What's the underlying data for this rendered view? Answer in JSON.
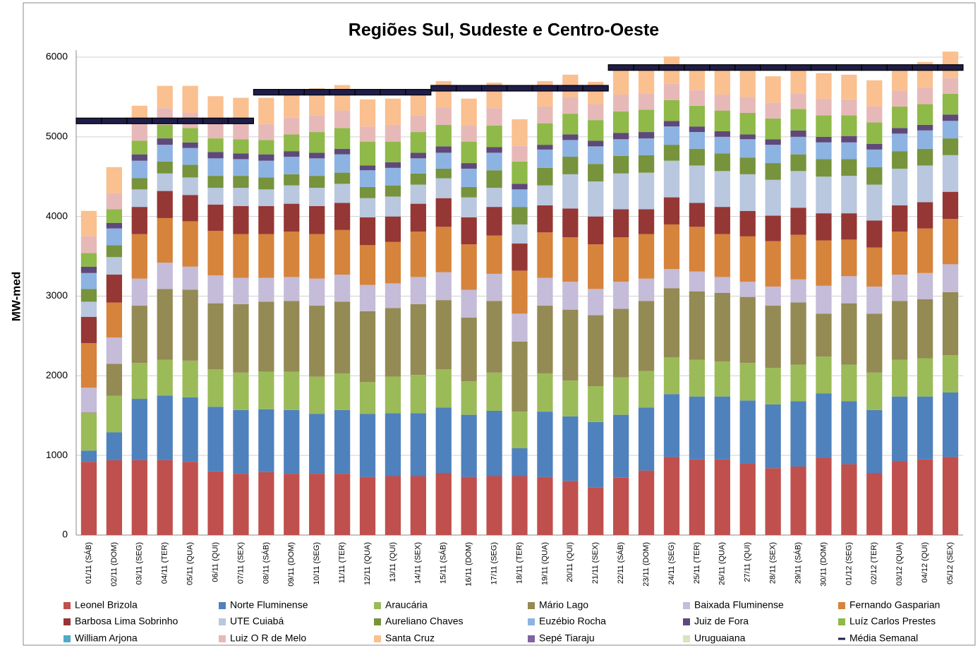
{
  "chart_data": {
    "type": "stacked-bar",
    "title": "Regiões Sul, Sudeste e Centro-Oeste",
    "y_label": "MW-med",
    "categories": [
      "01/11 (SÁB)",
      "02/11 (DOM)",
      "03/11 (SEG)",
      "04/11 (TER)",
      "05/11 (QUA)",
      "06/11 (QUI)",
      "07/11 (SEX)",
      "08/11 (SÁB)",
      "09/11 (DOM)",
      "10/11 (SEG)",
      "11/11 (TER)",
      "12/11 (QUA)",
      "13/11 (QUI)",
      "14/11 (SEX)",
      "15/11 (SÁB)",
      "16/11 (DOM)",
      "17/11 (SEG)",
      "18/11 (TER)",
      "19/11 (QUA)",
      "20/11 (QUI)",
      "21/11 (SEX)",
      "22/11 (SÁB)",
      "23/11 (DOM)",
      "24/11 (SEG)",
      "25/11 (TER)",
      "26/11 (QUA)",
      "27/11 (QUI)",
      "28/11 (SEX)",
      "29/11 (SÁB)",
      "30/11 (DOM)",
      "01/12 (SEG)",
      "02/12 (TER)",
      "03/12 (QUA)",
      "04/12 (QUI)",
      "05/12 (SEX)"
    ],
    "ylim": [
      0,
      6000
    ],
    "yticks": [
      0,
      1000,
      2000,
      3000,
      4000,
      5000,
      6000
    ],
    "series": [
      {
        "name": "Leonel Brizola",
        "color": "#c0504d",
        "values": [
          920,
          940,
          940,
          940,
          920,
          800,
          770,
          790,
          770,
          770,
          770,
          730,
          740,
          740,
          780,
          730,
          740,
          740,
          730,
          680,
          600,
          720,
          810,
          980,
          950,
          950,
          900,
          840,
          860,
          970,
          890,
          780,
          930,
          950,
          980
        ]
      },
      {
        "name": "Norte Fluminense",
        "color": "#4f81bd",
        "values": [
          140,
          350,
          770,
          810,
          810,
          810,
          800,
          790,
          800,
          750,
          800,
          790,
          790,
          790,
          820,
          780,
          820,
          350,
          820,
          810,
          820,
          790,
          790,
          790,
          790,
          790,
          790,
          800,
          820,
          810,
          790,
          790,
          810,
          790,
          810
        ]
      },
      {
        "name": "Araucária",
        "color": "#9bbb59",
        "values": [
          470,
          460,
          450,
          450,
          460,
          470,
          470,
          470,
          480,
          470,
          460,
          400,
          460,
          480,
          480,
          420,
          480,
          460,
          480,
          450,
          450,
          470,
          460,
          460,
          460,
          440,
          470,
          460,
          460,
          460,
          460,
          470,
          460,
          480,
          470
        ]
      },
      {
        "name": "Mário Lago",
        "color": "#948a54",
        "values": [
          10,
          400,
          720,
          890,
          890,
          830,
          860,
          880,
          890,
          890,
          900,
          890,
          860,
          890,
          870,
          800,
          900,
          880,
          850,
          890,
          890,
          860,
          880,
          870,
          860,
          860,
          830,
          780,
          780,
          540,
          770,
          740,
          740,
          740,
          790
        ]
      },
      {
        "name": "Baixada Fluminense",
        "color": "#c4bcd8",
        "values": [
          310,
          330,
          340,
          330,
          290,
          350,
          330,
          300,
          300,
          340,
          340,
          330,
          310,
          340,
          350,
          350,
          340,
          350,
          350,
          350,
          330,
          340,
          280,
          240,
          250,
          200,
          190,
          240,
          290,
          350,
          340,
          340,
          330,
          330,
          350
        ]
      },
      {
        "name": "Fernando Gasparian",
        "color": "#d6833c",
        "values": [
          560,
          440,
          560,
          560,
          570,
          560,
          550,
          550,
          570,
          560,
          560,
          500,
          520,
          570,
          570,
          570,
          480,
          540,
          570,
          560,
          560,
          560,
          560,
          560,
          560,
          540,
          570,
          570,
          560,
          570,
          460,
          490,
          540,
          560,
          570
        ]
      },
      {
        "name": "Barbosa Lima Sobrinho",
        "color": "#953735",
        "values": [
          330,
          350,
          340,
          340,
          330,
          330,
          350,
          350,
          350,
          350,
          340,
          350,
          320,
          350,
          360,
          340,
          360,
          340,
          340,
          360,
          350,
          350,
          310,
          340,
          300,
          340,
          320,
          320,
          340,
          340,
          330,
          340,
          330,
          330,
          340
        ]
      },
      {
        "name": "UTE Cuiabá",
        "color": "#b9c7df",
        "values": [
          190,
          220,
          220,
          220,
          220,
          210,
          230,
          210,
          230,
          230,
          240,
          240,
          250,
          240,
          250,
          250,
          240,
          240,
          250,
          430,
          440,
          450,
          460,
          460,
          470,
          450,
          460,
          450,
          460,
          460,
          470,
          450,
          460,
          460,
          460
        ]
      },
      {
        "name": "Aureliano Chaves",
        "color": "#77933c",
        "values": [
          160,
          150,
          140,
          150,
          160,
          150,
          150,
          150,
          140,
          150,
          140,
          140,
          140,
          140,
          120,
          130,
          220,
          220,
          220,
          220,
          220,
          220,
          220,
          200,
          210,
          220,
          210,
          210,
          210,
          220,
          210,
          220,
          220,
          210,
          210
        ]
      },
      {
        "name": "Euzébio Rocha",
        "color": "#8db3e2",
        "values": [
          200,
          210,
          220,
          210,
          210,
          220,
          210,
          210,
          220,
          220,
          230,
          210,
          220,
          190,
          200,
          230,
          220,
          220,
          230,
          210,
          220,
          210,
          210,
          230,
          210,
          210,
          230,
          230,
          220,
          210,
          210,
          220,
          220,
          230,
          220
        ]
      },
      {
        "name": "Juiz de Fora",
        "color": "#5f497a",
        "values": [
          80,
          70,
          80,
          80,
          70,
          80,
          70,
          80,
          70,
          70,
          70,
          60,
          70,
          70,
          80,
          70,
          70,
          70,
          60,
          70,
          70,
          80,
          80,
          70,
          70,
          70,
          60,
          70,
          80,
          70,
          80,
          70,
          70,
          70,
          80
        ]
      },
      {
        "name": "Luíz Carlos Prestes",
        "color": "#8fb948",
        "values": [
          170,
          170,
          170,
          170,
          180,
          170,
          180,
          180,
          210,
          260,
          260,
          300,
          260,
          260,
          270,
          270,
          270,
          280,
          270,
          260,
          260,
          270,
          280,
          260,
          260,
          260,
          270,
          260,
          270,
          270,
          260,
          270,
          270,
          260,
          260
        ]
      },
      {
        "name": "William Arjona",
        "color": "#4bacc6",
        "values": [
          0,
          0,
          0,
          0,
          0,
          0,
          0,
          0,
          0,
          0,
          0,
          0,
          0,
          0,
          0,
          0,
          0,
          0,
          0,
          0,
          0,
          0,
          0,
          0,
          0,
          0,
          0,
          0,
          0,
          0,
          0,
          0,
          0,
          0,
          0
        ]
      },
      {
        "name": "Luiz O R de Melo",
        "color": "#e6b9b8",
        "values": [
          210,
          200,
          220,
          210,
          190,
          220,
          210,
          200,
          210,
          210,
          220,
          190,
          210,
          210,
          220,
          200,
          220,
          200,
          210,
          210,
          200,
          210,
          200,
          210,
          200,
          200,
          200,
          200,
          190,
          210,
          200,
          200,
          200,
          210,
          200
        ]
      },
      {
        "name": "Santa Cruz",
        "color": "#fac090",
        "values": [
          320,
          330,
          220,
          280,
          340,
          310,
          310,
          330,
          310,
          340,
          320,
          340,
          330,
          250,
          330,
          340,
          320,
          330,
          320,
          280,
          280,
          310,
          320,
          340,
          260,
          320,
          330,
          330,
          320,
          320,
          310,
          330,
          270,
          320,
          330
        ]
      },
      {
        "name": "Sepé Tiaraju",
        "color": "#8064a2",
        "values": [
          0,
          0,
          0,
          0,
          0,
          0,
          0,
          0,
          0,
          0,
          0,
          0,
          0,
          0,
          0,
          0,
          0,
          0,
          0,
          0,
          0,
          0,
          0,
          0,
          0,
          0,
          0,
          0,
          0,
          0,
          0,
          0,
          0,
          0,
          0
        ]
      },
      {
        "name": "Uruguaiana",
        "color": "#d7e4bd",
        "values": [
          0,
          0,
          0,
          0,
          0,
          0,
          0,
          0,
          0,
          0,
          0,
          0,
          0,
          0,
          0,
          0,
          0,
          0,
          0,
          0,
          0,
          0,
          0,
          0,
          0,
          0,
          0,
          0,
          0,
          0,
          0,
          0,
          0,
          0,
          0
        ]
      },
      {
        "name": "Média Semanal",
        "color": "#1f1d4a",
        "type": "step",
        "values": [
          5200,
          5200,
          5200,
          5200,
          5200,
          5200,
          5200,
          5560,
          5560,
          5560,
          5560,
          5560,
          5560,
          5560,
          5610,
          5610,
          5610,
          5610,
          5610,
          5610,
          5610,
          5870,
          5870,
          5870,
          5870,
          5870,
          5870,
          5870,
          5870,
          5870,
          5870,
          5870,
          5870,
          5870,
          5870
        ]
      }
    ]
  }
}
